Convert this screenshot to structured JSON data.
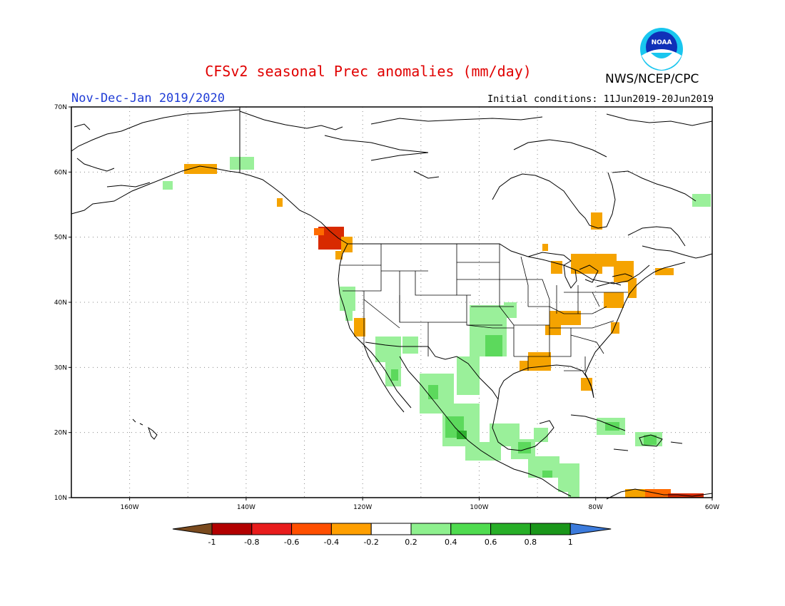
{
  "header": {
    "title": "CFSv2 seasonal Prec anomalies (mm/day)",
    "period": "Nov-Dec-Jan 2019/2020",
    "initial_conditions": "Initial conditions: 11Jun2019-20Jun2019",
    "agency": "NWS/NCEP/CPC",
    "logo_text": "NOAA"
  },
  "map": {
    "lon_range": [
      -170,
      -60
    ],
    "lat_range": [
      10,
      70
    ],
    "lon_ticks": [
      "160W",
      "140W",
      "120W",
      "100W",
      "80W",
      "60W"
    ],
    "lat_ticks": [
      "70N",
      "60N",
      "50N",
      "40N",
      "30N",
      "20N",
      "10N"
    ],
    "grid": true
  },
  "legend": {
    "labels": [
      "-1",
      "-0.8",
      "-0.6",
      "-0.4",
      "-0.2",
      "0.2",
      "0.4",
      "0.6",
      "0.8",
      "1"
    ],
    "colors": [
      "#7a4a1e",
      "#b20000",
      "#e81c1c",
      "#ff4f00",
      "#ff9f00",
      "#ffffff",
      "#8ef08e",
      "#4fdb4f",
      "#27ae27",
      "#1a961a",
      "#3c7bdc"
    ]
  },
  "anomaly_colors": {
    "dry_light": "#f5a300",
    "dry_mid": "#ff6a00",
    "dry_strong": "#d82a00",
    "wet_light": "#9af09a",
    "wet_mid": "#5cd95c",
    "wet_strong": "#2fb02f"
  }
}
